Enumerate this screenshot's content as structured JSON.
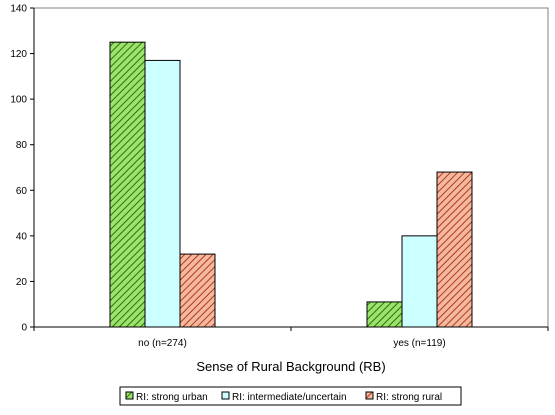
{
  "chart_data": {
    "type": "bar",
    "title": "",
    "xlabel": "Sense of Rural Background (RB)",
    "ylabel": "",
    "categories": [
      "no (n=274)",
      "yes (n=119)"
    ],
    "ylim": [
      0,
      140
    ],
    "yticks": [
      0,
      20,
      40,
      60,
      80,
      100,
      120,
      140
    ],
    "grid": false,
    "legend_position": "bottom",
    "series": [
      {
        "name": "RI: strong urban",
        "values": [
          125,
          11
        ],
        "color": "#8fd35f",
        "pattern": "diagonal-hatch-green"
      },
      {
        "name": "RI: intermediate/uncertain",
        "values": [
          117,
          40
        ],
        "color": "#ccffff",
        "pattern": "solid"
      },
      {
        "name": "RI: strong rural",
        "values": [
          32,
          68
        ],
        "color": "#f0a88c",
        "pattern": "diagonal-hatch-red"
      }
    ]
  }
}
